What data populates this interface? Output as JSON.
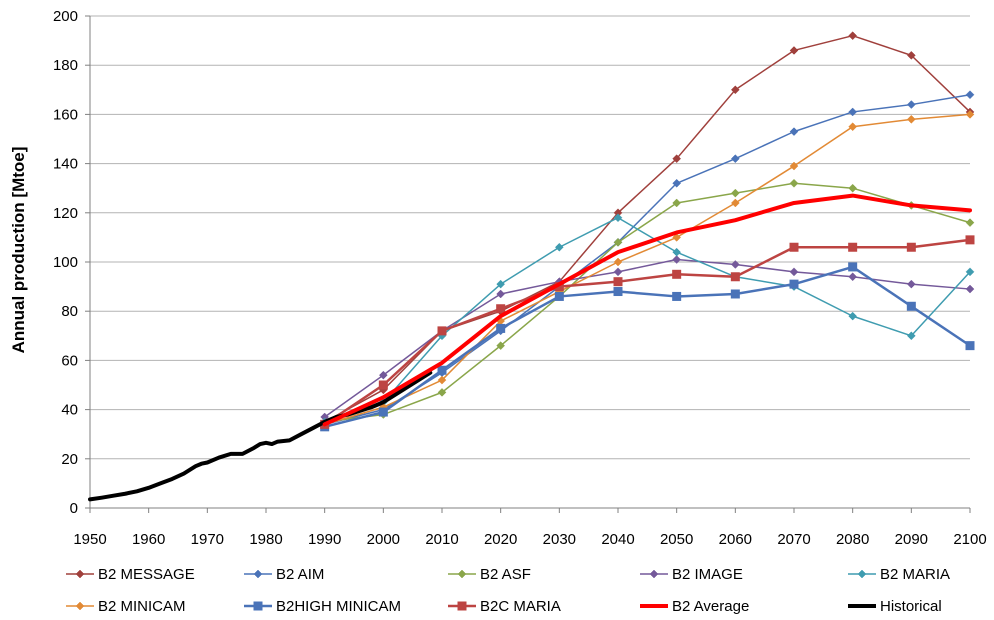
{
  "chart_data": {
    "type": "line",
    "title": "",
    "xlabel": "",
    "ylabel": "Annual production  [Mtoe]",
    "xlim": [
      1950,
      2100
    ],
    "ylim": [
      0,
      200
    ],
    "xticks": [
      "1950",
      "1960",
      "1970",
      "1980",
      "1990",
      "2000",
      "2010",
      "2020",
      "2030",
      "2040",
      "2050",
      "2060",
      "2070",
      "2080",
      "2090",
      "2100"
    ],
    "yticks": [
      "0",
      "20",
      "40",
      "60",
      "80",
      "100",
      "120",
      "140",
      "160",
      "180",
      "200"
    ],
    "grid": "horizontal",
    "legend_position": "bottom",
    "series": [
      {
        "name": "B2 MESSAGE",
        "color": "#a0403c",
        "marker": "diamond",
        "width": 1.5,
        "x": [
          1990,
          2000,
          2010,
          2020,
          2030,
          2040,
          2050,
          2060,
          2070,
          2080,
          2090,
          2100
        ],
        "y": [
          35,
          48,
          72,
          80,
          92,
          120,
          142,
          170,
          186,
          192,
          184,
          161
        ]
      },
      {
        "name": "B2 AIM",
        "color": "#4a73b8",
        "marker": "diamond",
        "width": 1.5,
        "x": [
          1990,
          2000,
          2010,
          2020,
          2030,
          2040,
          2050,
          2060,
          2070,
          2080,
          2090,
          2100
        ],
        "y": [
          34,
          40,
          55,
          72,
          90,
          108,
          132,
          142,
          153,
          161,
          164,
          168
        ]
      },
      {
        "name": "B2 ASF",
        "color": "#8aa64a",
        "marker": "diamond",
        "width": 1.5,
        "x": [
          1990,
          2000,
          2010,
          2020,
          2030,
          2040,
          2050,
          2060,
          2070,
          2080,
          2090,
          2100
        ],
        "y": [
          35,
          38,
          47,
          66,
          86,
          108,
          124,
          128,
          132,
          130,
          123,
          116
        ]
      },
      {
        "name": "B2 IMAGE",
        "color": "#74599a",
        "marker": "diamond",
        "width": 1.5,
        "x": [
          1990,
          2000,
          2010,
          2020,
          2030,
          2040,
          2050,
          2060,
          2070,
          2080,
          2090,
          2100
        ],
        "y": [
          37,
          54,
          72,
          87,
          92,
          96,
          101,
          99,
          96,
          94,
          91,
          89
        ]
      },
      {
        "name": "B2 MARIA",
        "color": "#3f9cb0",
        "marker": "diamond",
        "width": 1.5,
        "x": [
          1990,
          2000,
          2010,
          2020,
          2030,
          2040,
          2050,
          2060,
          2070,
          2080,
          2090,
          2100
        ],
        "y": [
          35,
          43,
          70,
          91,
          106,
          118,
          104,
          94,
          90,
          78,
          70,
          96
        ]
      },
      {
        "name": "B2 MINICAM",
        "color": "#e28a35",
        "marker": "diamond",
        "width": 1.5,
        "x": [
          1990,
          2000,
          2010,
          2020,
          2030,
          2040,
          2050,
          2060,
          2070,
          2080,
          2090,
          2100
        ],
        "y": [
          34,
          41,
          52,
          76,
          88,
          100,
          110,
          124,
          139,
          155,
          158,
          160
        ]
      },
      {
        "name": "B2HIGH MINICAM",
        "color": "#4a73b8",
        "marker": "square",
        "width": 2.5,
        "x": [
          1990,
          2000,
          2010,
          2020,
          2030,
          2040,
          2050,
          2060,
          2070,
          2080,
          2090,
          2100
        ],
        "y": [
          33,
          39,
          56,
          73,
          86,
          88,
          86,
          87,
          91,
          98,
          82,
          66
        ]
      },
      {
        "name": "B2C MARIA",
        "color": "#bd4442",
        "marker": "square",
        "width": 2.5,
        "x": [
          1990,
          2000,
          2010,
          2020,
          2030,
          2040,
          2050,
          2060,
          2070,
          2080,
          2090,
          2100
        ],
        "y": [
          34,
          50,
          72,
          81,
          90,
          92,
          95,
          94,
          106,
          106,
          106,
          109
        ]
      },
      {
        "name": "B2 Average",
        "color": "#ff0000",
        "marker": "none",
        "width": 4,
        "x": [
          1990,
          2000,
          2010,
          2020,
          2030,
          2040,
          2050,
          2060,
          2070,
          2080,
          2090,
          2100
        ],
        "y": [
          34,
          45,
          59,
          78,
          91,
          104,
          112,
          117,
          124,
          127,
          123,
          121
        ]
      },
      {
        "name": "Historical",
        "color": "#000000",
        "marker": "none",
        "width": 4,
        "x": [
          1950,
          1952,
          1954,
          1956,
          1958,
          1960,
          1962,
          1964,
          1966,
          1968,
          1969,
          1970,
          1972,
          1974,
          1976,
          1978,
          1979,
          1980,
          1981,
          1982,
          1984,
          1986,
          1988,
          1990,
          1992,
          1994,
          1996,
          1998,
          2000,
          2002,
          2004,
          2006,
          2008
        ],
        "y": [
          3.5,
          4.2,
          5.0,
          5.8,
          6.8,
          8.2,
          10.0,
          11.8,
          14.0,
          17.0,
          18.0,
          18.5,
          20.5,
          22.0,
          22.0,
          24.5,
          26.0,
          26.5,
          26.0,
          27.0,
          27.5,
          30.0,
          32.5,
          35.0,
          37.0,
          38.0,
          39.5,
          41.0,
          43.0,
          46.0,
          49.0,
          52.0,
          55.0
        ]
      }
    ]
  }
}
